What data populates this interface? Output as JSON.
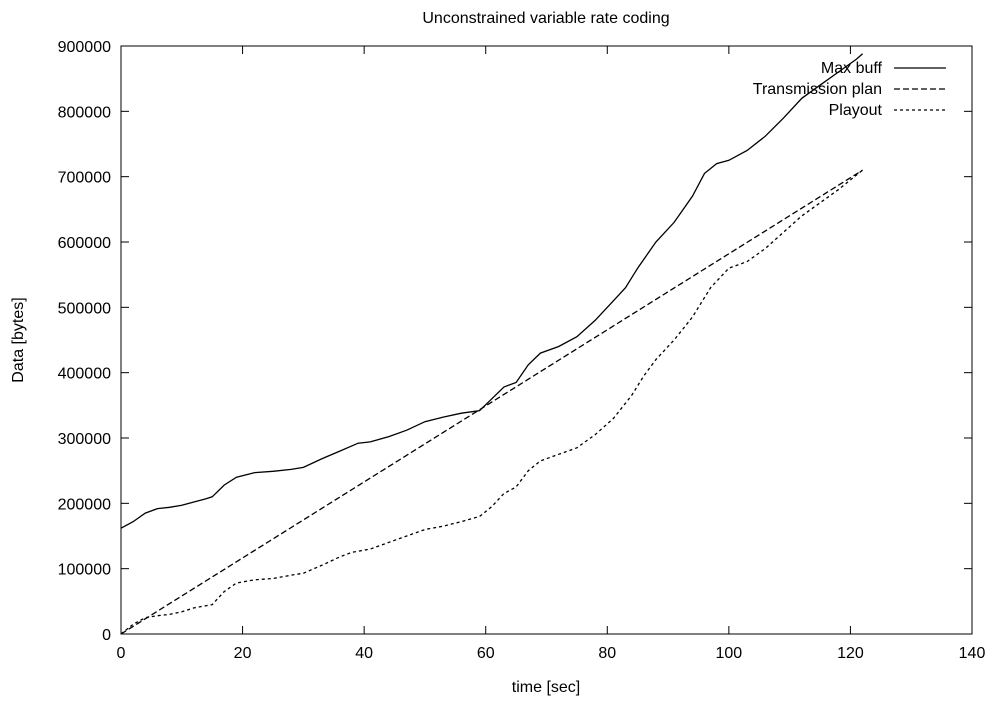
{
  "chart_data": {
    "type": "line",
    "title": "Unconstrained variable rate coding",
    "xlabel": "time [sec]",
    "ylabel": "Data [bytes]",
    "xlim": [
      0,
      140
    ],
    "ylim": [
      0,
      900000
    ],
    "xticks": [
      0,
      20,
      40,
      60,
      80,
      100,
      120,
      140
    ],
    "yticks": [
      0,
      100000,
      200000,
      300000,
      400000,
      500000,
      600000,
      700000,
      800000,
      900000
    ],
    "grid": false,
    "legend_position": "top-right",
    "series": [
      {
        "name": "Max buff",
        "style": "solid",
        "x": [
          0,
          2,
          4,
          6,
          8,
          10,
          12,
          14,
          15,
          17,
          19,
          22,
          25,
          28,
          30,
          33,
          36,
          39,
          41,
          44,
          47,
          50,
          53,
          56,
          59,
          61,
          63,
          65,
          67,
          69,
          72,
          75,
          78,
          81,
          83,
          85,
          88,
          91,
          94,
          96,
          98,
          100,
          103,
          106,
          109,
          112,
          115,
          118,
          121,
          122
        ],
        "y": [
          162000,
          172000,
          185000,
          192000,
          194000,
          197000,
          202000,
          207000,
          210000,
          228000,
          240000,
          247000,
          249000,
          252000,
          255000,
          268000,
          280000,
          292000,
          294000,
          302000,
          312000,
          325000,
          332000,
          338000,
          342000,
          360000,
          378000,
          385000,
          412000,
          430000,
          440000,
          455000,
          480000,
          510000,
          530000,
          560000,
          600000,
          630000,
          670000,
          705000,
          720000,
          725000,
          740000,
          762000,
          790000,
          820000,
          840000,
          860000,
          880000,
          888000
        ]
      },
      {
        "name": "Transmission plan",
        "style": "dashed",
        "x": [
          0,
          122
        ],
        "y": [
          0,
          710000
        ]
      },
      {
        "name": "Playout",
        "style": "dotted",
        "x": [
          0,
          2,
          4,
          6,
          8,
          10,
          12,
          15,
          17,
          19,
          22,
          25,
          28,
          30,
          33,
          36,
          38,
          41,
          44,
          47,
          50,
          53,
          56,
          59,
          61,
          63,
          65,
          67,
          69,
          72,
          75,
          78,
          81,
          84,
          86,
          88,
          91,
          94,
          97,
          100,
          103,
          106,
          109,
          112,
          115,
          118,
          122
        ],
        "y": [
          0,
          15000,
          25000,
          28000,
          30000,
          34000,
          40000,
          45000,
          65000,
          78000,
          83000,
          85000,
          90000,
          93000,
          105000,
          118000,
          125000,
          130000,
          140000,
          150000,
          160000,
          165000,
          172000,
          180000,
          195000,
          215000,
          225000,
          250000,
          265000,
          275000,
          285000,
          305000,
          330000,
          365000,
          395000,
          420000,
          450000,
          485000,
          530000,
          560000,
          570000,
          590000,
          615000,
          640000,
          660000,
          680000,
          710000
        ]
      }
    ]
  }
}
